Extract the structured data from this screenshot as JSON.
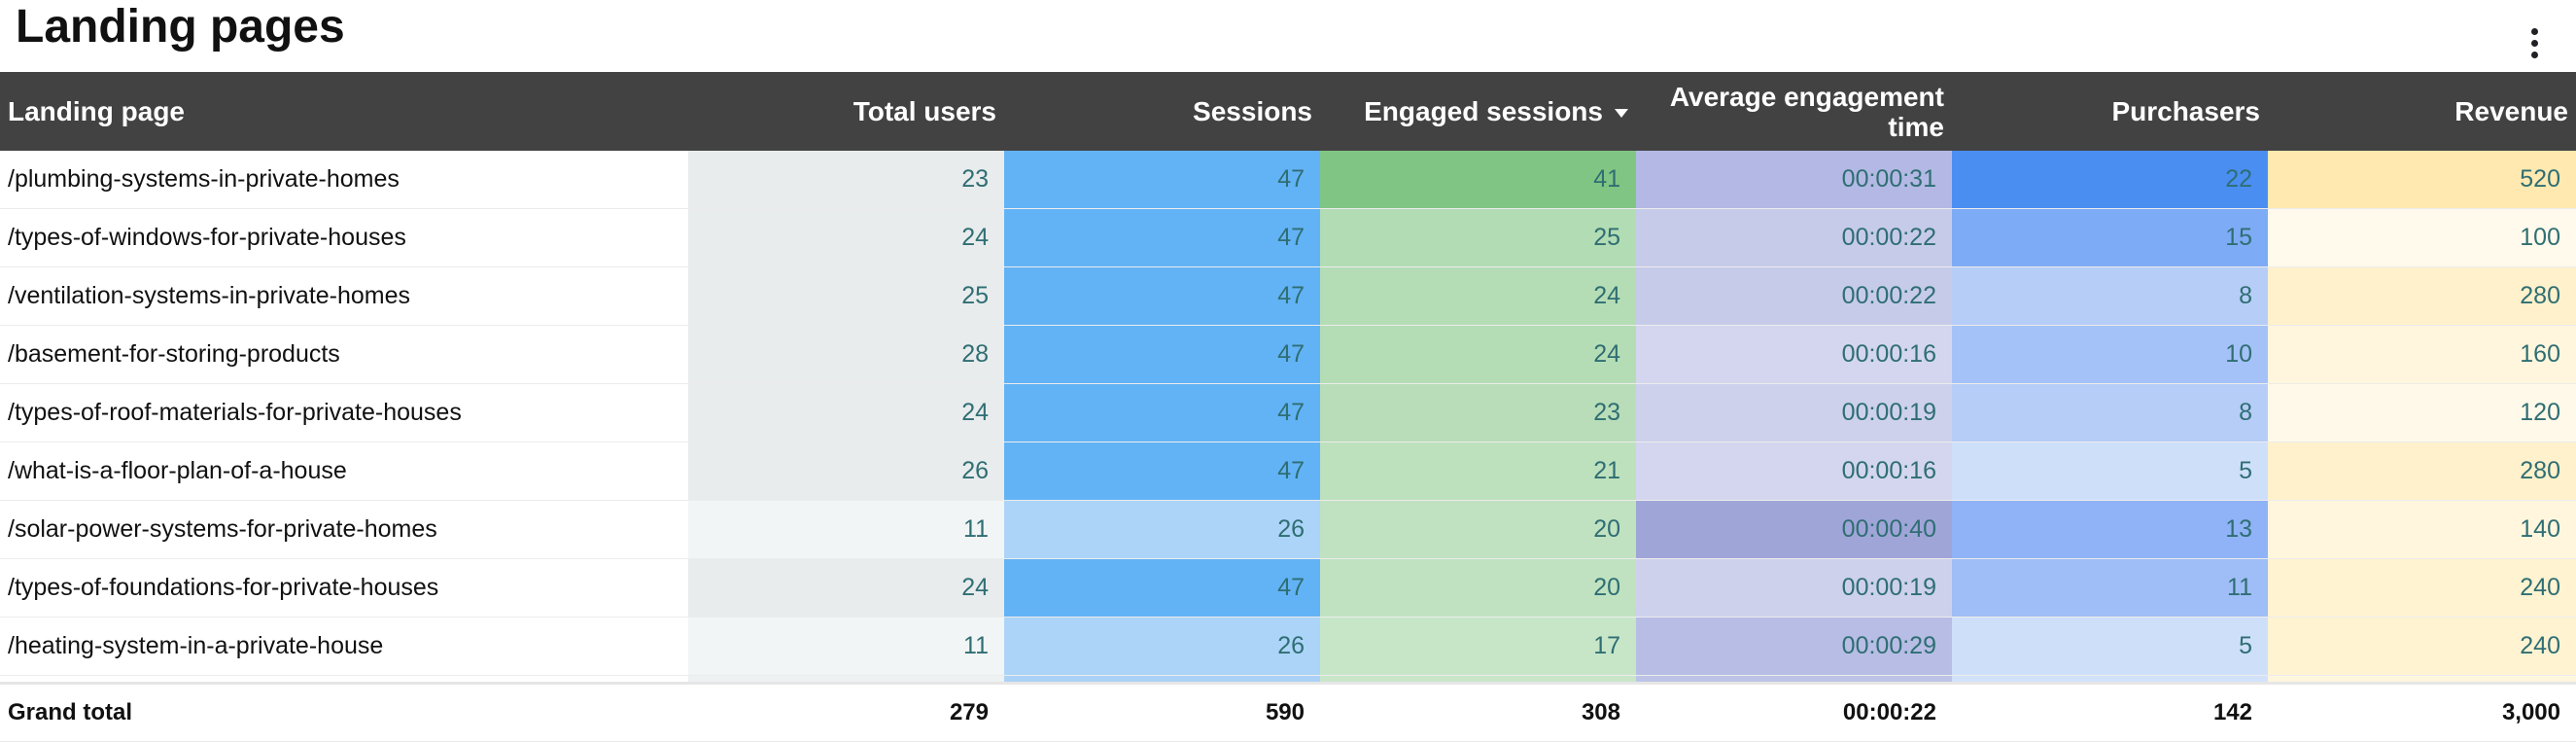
{
  "title": "Landing pages",
  "menu_icon": "more-vert-icon",
  "columns": [
    "Landing page",
    "Total users",
    "Sessions",
    "Engaged sessions",
    "Average engagement time",
    "Purchasers",
    "Revenue"
  ],
  "sort": {
    "column": "Engaged sessions",
    "direction": "descending",
    "icon": "sort-down-icon"
  },
  "rows": [
    {
      "page": "/plumbing-systems-in-private-homes",
      "users": "23",
      "sessions": "47",
      "engaged": "41",
      "avg_time": "00:00:31",
      "purchasers": "22",
      "revenue": "520"
    },
    {
      "page": "/types-of-windows-for-private-houses",
      "users": "24",
      "sessions": "47",
      "engaged": "25",
      "avg_time": "00:00:22",
      "purchasers": "15",
      "revenue": "100"
    },
    {
      "page": "/ventilation-systems-in-private-homes",
      "users": "25",
      "sessions": "47",
      "engaged": "24",
      "avg_time": "00:00:22",
      "purchasers": "8",
      "revenue": "280"
    },
    {
      "page": "/basement-for-storing-products",
      "users": "28",
      "sessions": "47",
      "engaged": "24",
      "avg_time": "00:00:16",
      "purchasers": "10",
      "revenue": "160"
    },
    {
      "page": "/types-of-roof-materials-for-private-houses",
      "users": "24",
      "sessions": "47",
      "engaged": "23",
      "avg_time": "00:00:19",
      "purchasers": "8",
      "revenue": "120"
    },
    {
      "page": "/what-is-a-floor-plan-of-a-house",
      "users": "26",
      "sessions": "47",
      "engaged": "21",
      "avg_time": "00:00:16",
      "purchasers": "5",
      "revenue": "280"
    },
    {
      "page": "/solar-power-systems-for-private-homes",
      "users": "11",
      "sessions": "26",
      "engaged": "20",
      "avg_time": "00:00:40",
      "purchasers": "13",
      "revenue": "140"
    },
    {
      "page": "/types-of-foundations-for-private-houses",
      "users": "24",
      "sessions": "47",
      "engaged": "20",
      "avg_time": "00:00:19",
      "purchasers": "11",
      "revenue": "240"
    },
    {
      "page": "/heating-system-in-a-private-house",
      "users": "11",
      "sessions": "26",
      "engaged": "17",
      "avg_time": "00:00:29",
      "purchasers": "5",
      "revenue": "240"
    }
  ],
  "partial_row_colors": [
    "#ffffff",
    "#eef1f2",
    "#abd1f7",
    "#c9e6c9",
    "#bcc3e6",
    "#d2e2fb",
    "#fff6de"
  ],
  "heatmap_colors": {
    "users": [
      "#e8eced",
      "#e8eced",
      "#e8eced",
      "#e8eced",
      "#e8eced",
      "#e8eced",
      "#f1f5f5",
      "#e8eced",
      "#f1f5f5"
    ],
    "sessions": [
      "#62b3f5",
      "#62b3f5",
      "#62b3f5",
      "#62b3f5",
      "#62b3f5",
      "#62b3f5",
      "#abd4f8",
      "#62b3f5",
      "#abd4f8"
    ],
    "engaged": [
      "#80c583",
      "#b2dcb3",
      "#b5ddb5",
      "#b5ddb5",
      "#b8ddb8",
      "#bde0bd",
      "#c0e2c1",
      "#c0e2c1",
      "#c7e6c8"
    ],
    "avg_time": [
      "#b3b9e4",
      "#c6cbea",
      "#c6cbea",
      "#d3d6ee",
      "#cdd1ec",
      "#d3d6ee",
      "#a0a5d8",
      "#cdd1ec",
      "#b7bde5"
    ],
    "purchasers": [
      "#4a8ef2",
      "#7eabf5",
      "#b6cdf8",
      "#a4c2f7",
      "#b6cdf8",
      "#cedff9",
      "#8fb3f6",
      "#9fbdf6",
      "#cedff9"
    ],
    "revenue": [
      "#ffe9b0",
      "#fffaec",
      "#fff1cb",
      "#fff6dd",
      "#fff9e9",
      "#fff1cb",
      "#fff6dd",
      "#fff3d1",
      "#fff3d1"
    ]
  },
  "total": {
    "label": "Grand total",
    "users": "279",
    "sessions": "590",
    "engaged": "308",
    "avg_time": "00:00:22",
    "purchasers": "142",
    "revenue": "3,000"
  }
}
